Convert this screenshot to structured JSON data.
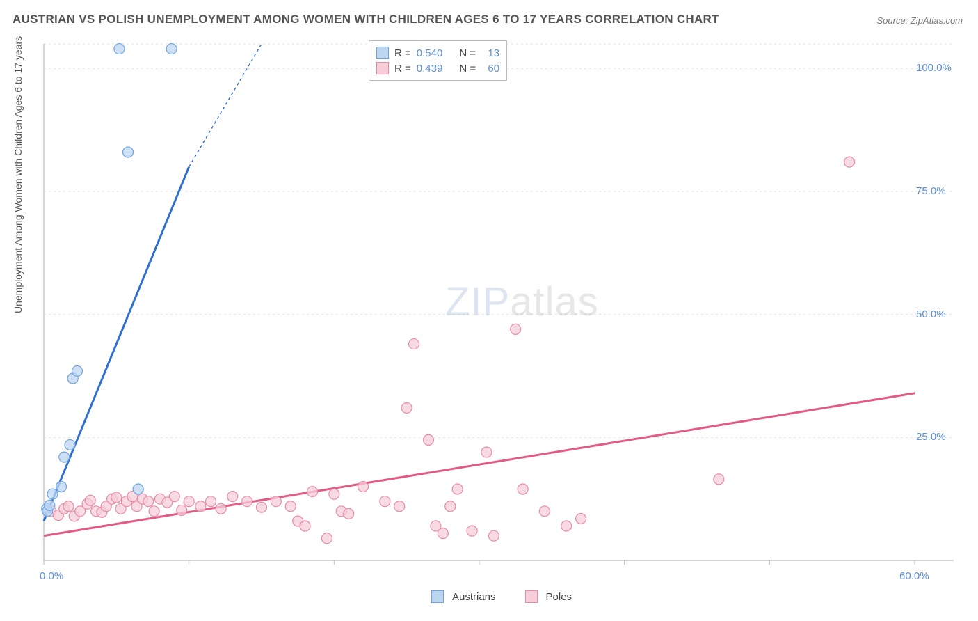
{
  "title": "AUSTRIAN VS POLISH UNEMPLOYMENT AMONG WOMEN WITH CHILDREN AGES 6 TO 17 YEARS CORRELATION CHART",
  "source": "Source: ZipAtlas.com",
  "ylabel": "Unemployment Among Women with Children Ages 6 to 17 years",
  "watermark": {
    "zip": "ZIP",
    "atlas": "atlas"
  },
  "chart": {
    "type": "scatter",
    "xlim": [
      0,
      60
    ],
    "ylim": [
      0,
      105
    ],
    "x_ticks": [
      0,
      10,
      20,
      30,
      40,
      50,
      60
    ],
    "x_tick_labels_shown": {
      "0": "0.0%",
      "60": "60.0%"
    },
    "y_ticks": [
      25,
      50,
      75,
      100
    ],
    "y_tick_labels": {
      "25": "25.0%",
      "50": "50.0%",
      "75": "75.0%",
      "100": "100.0%"
    },
    "grid_color": "#e2e2e2",
    "axis_color": "#bcbcbc",
    "background_color": "#ffffff",
    "marker_radius": 7.5,
    "marker_stroke_width": 1.2,
    "trend_line_width": 3,
    "trend_dash": "4,4",
    "series": [
      {
        "name": "Austrians",
        "fill": "#bcd6f2",
        "stroke": "#6ea3e0",
        "line_color": "#2f6fd0",
        "R": "0.540",
        "N": "13",
        "trend": {
          "x1": 0,
          "y1": 8,
          "x2": 10,
          "y2": 80,
          "dash_from_x": 10,
          "dash_to_x": 15,
          "dash_to_y": 116
        },
        "points": [
          [
            0.2,
            10.5
          ],
          [
            0.25,
            10.0
          ],
          [
            0.4,
            11.2
          ],
          [
            0.6,
            13.5
          ],
          [
            1.2,
            15.0
          ],
          [
            1.4,
            21.0
          ],
          [
            1.8,
            23.5
          ],
          [
            2.0,
            37.0
          ],
          [
            2.3,
            38.5
          ],
          [
            6.5,
            14.5
          ],
          [
            5.2,
            104.0
          ],
          [
            8.8,
            104.0
          ],
          [
            5.8,
            83.0
          ]
        ]
      },
      {
        "name": "Poles",
        "fill": "#f6cdd8",
        "stroke": "#e88ba6",
        "line_color": "#e35a82",
        "R": "0.439",
        "N": "60",
        "trend": {
          "x1": 0,
          "y1": 5,
          "x2": 60,
          "y2": 34
        },
        "points": [
          [
            0.5,
            10.0
          ],
          [
            1.0,
            9.2
          ],
          [
            1.4,
            10.5
          ],
          [
            1.7,
            11.0
          ],
          [
            2.1,
            9.0
          ],
          [
            2.5,
            10.0
          ],
          [
            3.0,
            11.5
          ],
          [
            3.2,
            12.2
          ],
          [
            3.6,
            10.0
          ],
          [
            4.0,
            9.8
          ],
          [
            4.3,
            11.0
          ],
          [
            4.7,
            12.5
          ],
          [
            5.0,
            12.8
          ],
          [
            5.3,
            10.5
          ],
          [
            5.7,
            12.0
          ],
          [
            6.1,
            13.0
          ],
          [
            6.4,
            11.0
          ],
          [
            6.8,
            12.5
          ],
          [
            7.2,
            12.0
          ],
          [
            7.6,
            10.0
          ],
          [
            8.0,
            12.5
          ],
          [
            8.5,
            11.8
          ],
          [
            9.0,
            13.0
          ],
          [
            9.5,
            10.2
          ],
          [
            10.0,
            12.0
          ],
          [
            10.8,
            11.0
          ],
          [
            11.5,
            12.0
          ],
          [
            12.2,
            10.5
          ],
          [
            13.0,
            13.0
          ],
          [
            14.0,
            12.0
          ],
          [
            15.0,
            10.8
          ],
          [
            16.0,
            12.0
          ],
          [
            17.0,
            11.0
          ],
          [
            17.5,
            8.0
          ],
          [
            18.0,
            7.0
          ],
          [
            18.5,
            14.0
          ],
          [
            19.5,
            4.5
          ],
          [
            20.0,
            13.5
          ],
          [
            20.5,
            10.0
          ],
          [
            21.0,
            9.5
          ],
          [
            22.0,
            15.0
          ],
          [
            23.5,
            12.0
          ],
          [
            24.5,
            11.0
          ],
          [
            25.0,
            31.0
          ],
          [
            25.5,
            44.0
          ],
          [
            26.5,
            24.5
          ],
          [
            27.0,
            7.0
          ],
          [
            27.5,
            5.5
          ],
          [
            28.0,
            11.0
          ],
          [
            28.5,
            14.5
          ],
          [
            29.5,
            6.0
          ],
          [
            30.5,
            22.0
          ],
          [
            31.0,
            5.0
          ],
          [
            32.5,
            47.0
          ],
          [
            33.0,
            14.5
          ],
          [
            34.5,
            10.0
          ],
          [
            36.0,
            7.0
          ],
          [
            37.0,
            8.5
          ],
          [
            46.5,
            16.5
          ],
          [
            55.5,
            81.0
          ]
        ]
      }
    ]
  },
  "legend_top": {
    "R_label": "R =",
    "N_label": "N ="
  },
  "legend_bottom": {
    "items": [
      "Austrians",
      "Poles"
    ]
  }
}
